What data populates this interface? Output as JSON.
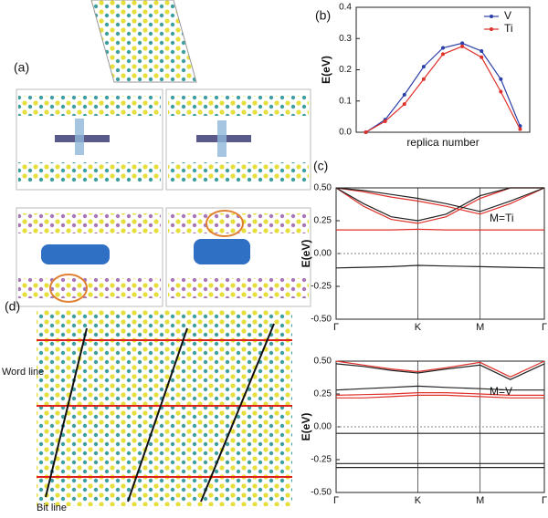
{
  "panels": {
    "a": "(a)",
    "b": "(b)",
    "c": "(c)",
    "d": "(d)"
  },
  "annotations": {
    "word_line": "Word line",
    "bit_line": "Bit line"
  },
  "chart_data": [
    {
      "type": "line",
      "ylabel": "E(eV)",
      "xlabel": "replica number",
      "markers": true,
      "legend": "upper right",
      "x": [
        1,
        2,
        3,
        4,
        5,
        6,
        7,
        8,
        9
      ],
      "xlim": [
        0.5,
        9.5
      ],
      "ylim": [
        0,
        0.4
      ],
      "yticks": [
        {
          "value": 0,
          "label": "0.0"
        },
        {
          "value": 0.1,
          "label": "0.1"
        },
        {
          "value": 0.2,
          "label": "0.2"
        },
        {
          "value": 0.3,
          "label": "0.3"
        },
        {
          "value": 0.4,
          "label": "0.4"
        }
      ],
      "series": [
        {
          "name": "V",
          "color": "#2b3fa8",
          "values": [
            0,
            0.04,
            0.12,
            0.21,
            0.27,
            0.285,
            0.26,
            0.17,
            0.02
          ]
        },
        {
          "name": "Ti",
          "color": "#e0302a",
          "values": [
            0,
            0.035,
            0.09,
            0.17,
            0.25,
            0.275,
            0.24,
            0.13,
            0.01
          ]
        }
      ]
    },
    {
      "type": "line",
      "ylabel": "E(eV)",
      "annotation": "M=Ti",
      "zero_line": true,
      "xgrid": true,
      "x": [
        0,
        0.3,
        0.6,
        0.89,
        1.2,
        1.57,
        1.9,
        2.27
      ],
      "xlim": [
        0,
        2.27
      ],
      "xticks": [
        {
          "value": 0,
          "label": "Γ"
        },
        {
          "value": 0.89,
          "label": "K"
        },
        {
          "value": 1.57,
          "label": "M"
        },
        {
          "value": 2.27,
          "label": "Γ"
        }
      ],
      "ylim": [
        -0.5,
        0.5
      ],
      "yticks": [
        {
          "value": -0.5,
          "label": "-0.50"
        },
        {
          "value": -0.25,
          "label": "-0.25"
        },
        {
          "value": 0,
          "label": "0.00"
        },
        {
          "value": 0.25,
          "label": "0.25"
        },
        {
          "value": 0.5,
          "label": "0.50"
        }
      ],
      "series": [
        {
          "color": "#e0302a",
          "values": [
            0.18,
            0.18,
            0.18,
            0.185,
            0.18,
            0.18,
            0.18,
            0.18
          ]
        },
        {
          "color": "#222222",
          "values": [
            -0.11,
            -0.105,
            -0.1,
            -0.09,
            -0.095,
            -0.1,
            -0.105,
            -0.11
          ]
        },
        {
          "color": "#e0302a",
          "values": [
            0.5,
            0.36,
            0.26,
            0.23,
            0.28,
            0.42,
            0.5,
            0.5
          ]
        },
        {
          "color": "#222222",
          "values": [
            0.5,
            0.38,
            0.28,
            0.25,
            0.3,
            0.44,
            0.5,
            0.5
          ]
        },
        {
          "color": "#e0302a",
          "values": [
            0.5,
            0.47,
            0.43,
            0.4,
            0.36,
            0.3,
            0.38,
            0.5
          ]
        },
        {
          "color": "#222222",
          "values": [
            0.5,
            0.48,
            0.45,
            0.42,
            0.38,
            0.32,
            0.4,
            0.5
          ]
        }
      ]
    },
    {
      "type": "line",
      "ylabel": "E(eV)",
      "annotation": "M=V",
      "zero_line": true,
      "xgrid": true,
      "x": [
        0,
        0.3,
        0.6,
        0.89,
        1.2,
        1.57,
        1.9,
        2.27
      ],
      "xlim": [
        0,
        2.27
      ],
      "xticks": [
        {
          "value": 0,
          "label": "Γ"
        },
        {
          "value": 0.89,
          "label": "K"
        },
        {
          "value": 1.57,
          "label": "M"
        },
        {
          "value": 2.27,
          "label": "Γ"
        }
      ],
      "ylim": [
        -0.5,
        0.5
      ],
      "yticks": [
        {
          "value": -0.5,
          "label": "-0.50"
        },
        {
          "value": -0.25,
          "label": "-0.25"
        },
        {
          "value": 0,
          "label": "0.00"
        },
        {
          "value": 0.25,
          "label": "0.25"
        },
        {
          "value": 0.5,
          "label": "0.50"
        }
      ],
      "series": [
        {
          "color": "#e0302a",
          "values": [
            0.22,
            0.22,
            0.23,
            0.24,
            0.24,
            0.23,
            0.22,
            0.22
          ]
        },
        {
          "color": "#e0302a",
          "values": [
            0.24,
            0.245,
            0.25,
            0.26,
            0.26,
            0.25,
            0.24,
            0.24
          ]
        },
        {
          "color": "#222222",
          "values": [
            0.28,
            0.29,
            0.3,
            0.31,
            0.3,
            0.29,
            0.28,
            0.28
          ]
        },
        {
          "color": "#222222",
          "values": [
            -0.05,
            -0.05,
            -0.05,
            -0.05,
            -0.05,
            -0.05,
            -0.05,
            -0.05
          ]
        },
        {
          "color": "#222222",
          "values": [
            -0.28,
            -0.28,
            -0.28,
            -0.28,
            -0.28,
            -0.28,
            -0.28,
            -0.28
          ]
        },
        {
          "color": "#222222",
          "values": [
            -0.31,
            -0.31,
            -0.31,
            -0.31,
            -0.31,
            -0.31,
            -0.31,
            -0.31
          ]
        },
        {
          "color": "#e0302a",
          "values": [
            0.5,
            0.47,
            0.44,
            0.42,
            0.45,
            0.49,
            0.38,
            0.5
          ]
        },
        {
          "color": "#222222",
          "values": [
            0.48,
            0.46,
            0.43,
            0.41,
            0.44,
            0.47,
            0.36,
            0.48
          ]
        }
      ]
    }
  ]
}
